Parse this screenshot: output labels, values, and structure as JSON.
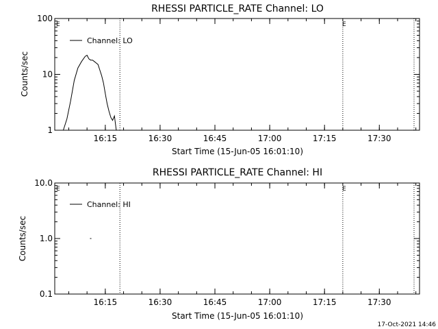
{
  "footer_timestamp": "17-Oct-2021 14:46",
  "chart_data": [
    {
      "type": "line",
      "title": "RHESSI PARTICLE_RATE Channel: LO",
      "xlabel": "Start Time (15-Jun-05 16:01:10)",
      "ylabel": "Counts/sec",
      "yscale": "log",
      "ylim": [
        1,
        100
      ],
      "yticks": [
        "1",
        "10",
        "100"
      ],
      "ytick_values": [
        1,
        10,
        100
      ],
      "xlim": [
        "16:01:10",
        "17:41:00"
      ],
      "xticks": [
        "16:15",
        "16:30",
        "16:45",
        "17:00",
        "17:15",
        "17:30"
      ],
      "legend": "Channel: LO",
      "legend_position": "top-left",
      "flag_label": "E",
      "vlines": [
        "16:19:00",
        "17:20:00",
        "17:39:30"
      ],
      "series": [
        {
          "name": "Channel: LO",
          "x": [
            "16:03:30",
            "16:04:30",
            "16:05:30",
            "16:06:30",
            "16:07:30",
            "16:08:30",
            "16:09:30",
            "16:10:00",
            "16:10:30",
            "16:11:00",
            "16:11:30",
            "16:12:00",
            "16:12:30",
            "16:13:00",
            "16:13:30",
            "16:14:00",
            "16:14:30",
            "16:15:00",
            "16:15:30",
            "16:16:00",
            "16:16:30",
            "16:17:00",
            "16:17:30",
            "16:18:00"
          ],
          "y": [
            1,
            1.6,
            3.3,
            7.8,
            13,
            17,
            21,
            22,
            19,
            18,
            18,
            17,
            16,
            15,
            12,
            9.5,
            7,
            4.5,
            3,
            2.2,
            1.7,
            1.5,
            1.8,
            1
          ]
        }
      ]
    },
    {
      "type": "line",
      "title": "RHESSI PARTICLE_RATE Channel: HI",
      "xlabel": "Start Time (15-Jun-05 16:01:10)",
      "ylabel": "Counts/sec",
      "yscale": "log",
      "ylim": [
        0.1,
        10
      ],
      "yticks": [
        "0.1",
        "1.0",
        "10.0"
      ],
      "ytick_values": [
        0.1,
        1,
        10
      ],
      "xlim": [
        "16:01:10",
        "17:41:00"
      ],
      "xticks": [
        "16:15",
        "16:30",
        "16:45",
        "17:00",
        "17:15",
        "17:30"
      ],
      "legend": "Channel: HI",
      "legend_position": "top-left",
      "flag_label": "E",
      "vlines": [
        "16:19:00",
        "17:20:00",
        "17:39:30"
      ],
      "series": [
        {
          "name": "Channel: HI",
          "x": [
            "16:11:00"
          ],
          "y": [
            1.0
          ]
        }
      ]
    }
  ]
}
